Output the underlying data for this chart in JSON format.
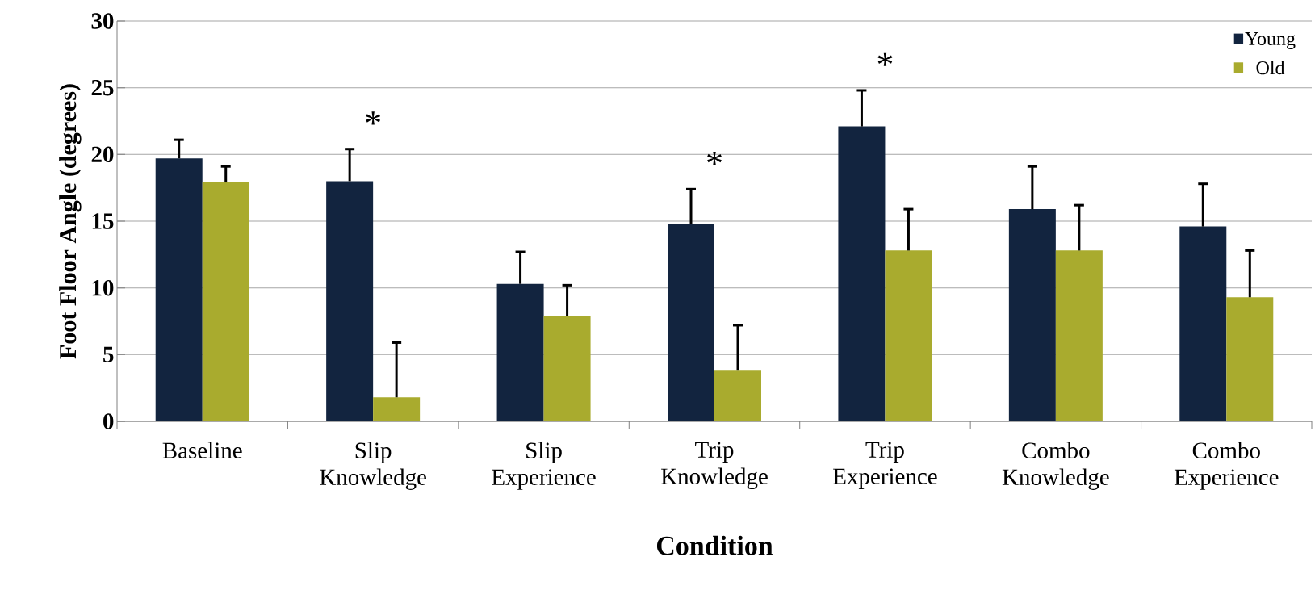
{
  "chart_data": {
    "type": "bar",
    "xlabel": "Condition",
    "ylabel": "Foot Floor Angle (degrees)",
    "categories": [
      "Baseline",
      "Slip Knowledge",
      "Slip Experience",
      "Trip Knowledge",
      "Trip Experience",
      "Combo Knowledge",
      "Combo Experience"
    ],
    "series": [
      {
        "name": "Young",
        "color": "#12243f",
        "values": [
          19.7,
          18.0,
          10.3,
          14.8,
          22.1,
          15.9,
          14.6
        ],
        "value_labels": [
          null,
          "*",
          null,
          "*",
          "*",
          null,
          null
        ],
        "errors": [
          [
            19.7,
            21.1
          ],
          [
            18.0,
            20.4
          ],
          [
            10.3,
            12.7
          ],
          [
            14.8,
            17.4
          ],
          [
            22.1,
            24.8
          ],
          [
            15.9,
            19.1
          ],
          [
            14.6,
            17.8
          ]
        ]
      },
      {
        "name": "Old",
        "color": "#a9ab2e",
        "values": [
          17.9,
          1.8,
          7.9,
          3.8,
          12.8,
          12.8,
          9.3
        ],
        "errors": [
          [
            17.9,
            19.1
          ],
          [
            1.8,
            5.9
          ],
          [
            7.9,
            10.2
          ],
          [
            3.8,
            7.2
          ],
          [
            12.8,
            15.9
          ],
          [
            12.8,
            16.2
          ],
          [
            9.3,
            12.8
          ]
        ]
      }
    ],
    "ylim": [
      0,
      30
    ],
    "yticks": [
      0,
      5,
      10,
      15,
      20,
      25,
      30
    ],
    "grid": "y",
    "legend": "top right"
  }
}
